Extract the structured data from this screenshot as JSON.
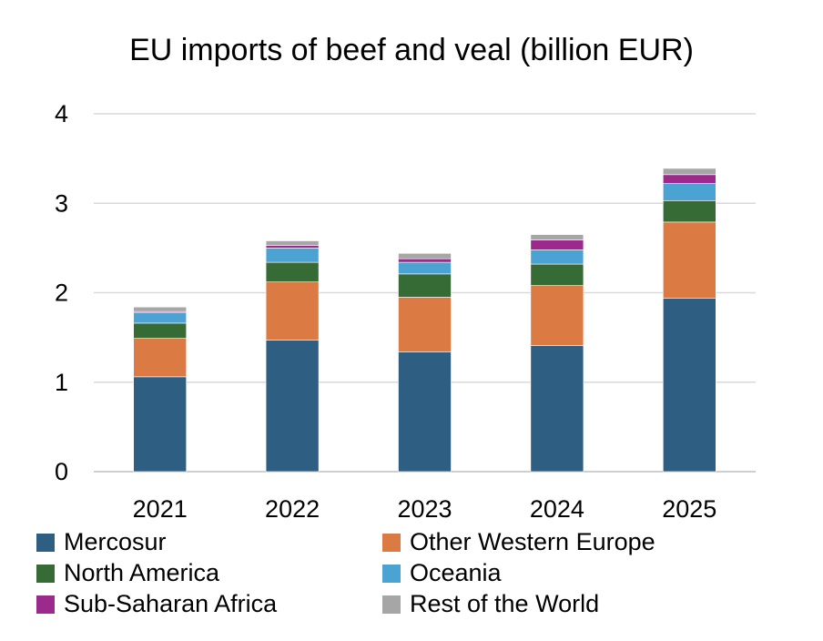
{
  "chart_data": {
    "type": "bar",
    "stacked": true,
    "title": "EU imports of beef and veal (billion EUR)",
    "xlabel": "",
    "ylabel": "",
    "ylim": [
      0,
      4
    ],
    "yticks": [
      0,
      1,
      2,
      3,
      4
    ],
    "grid": true,
    "legend_position": "bottom",
    "categories": [
      "2021",
      "2022",
      "2023",
      "2024",
      "2025"
    ],
    "series": [
      {
        "name": "Mercosur",
        "color": "#2E5F82",
        "values": [
          1.06,
          1.47,
          1.34,
          1.41,
          1.94
        ]
      },
      {
        "name": "Other Western Europe",
        "color": "#DB7B43",
        "values": [
          0.43,
          0.65,
          0.61,
          0.67,
          0.85
        ]
      },
      {
        "name": "North America",
        "color": "#376B35",
        "values": [
          0.17,
          0.22,
          0.26,
          0.24,
          0.24
        ]
      },
      {
        "name": "Oceania",
        "color": "#4BA3D4",
        "values": [
          0.12,
          0.16,
          0.13,
          0.16,
          0.19
        ]
      },
      {
        "name": "Sub-Saharan Africa",
        "color": "#9B2A8C",
        "values": [
          0.01,
          0.03,
          0.04,
          0.11,
          0.1
        ]
      },
      {
        "name": "Rest of the World",
        "color": "#A6A6A6",
        "values": [
          0.05,
          0.05,
          0.06,
          0.06,
          0.07
        ]
      }
    ]
  }
}
